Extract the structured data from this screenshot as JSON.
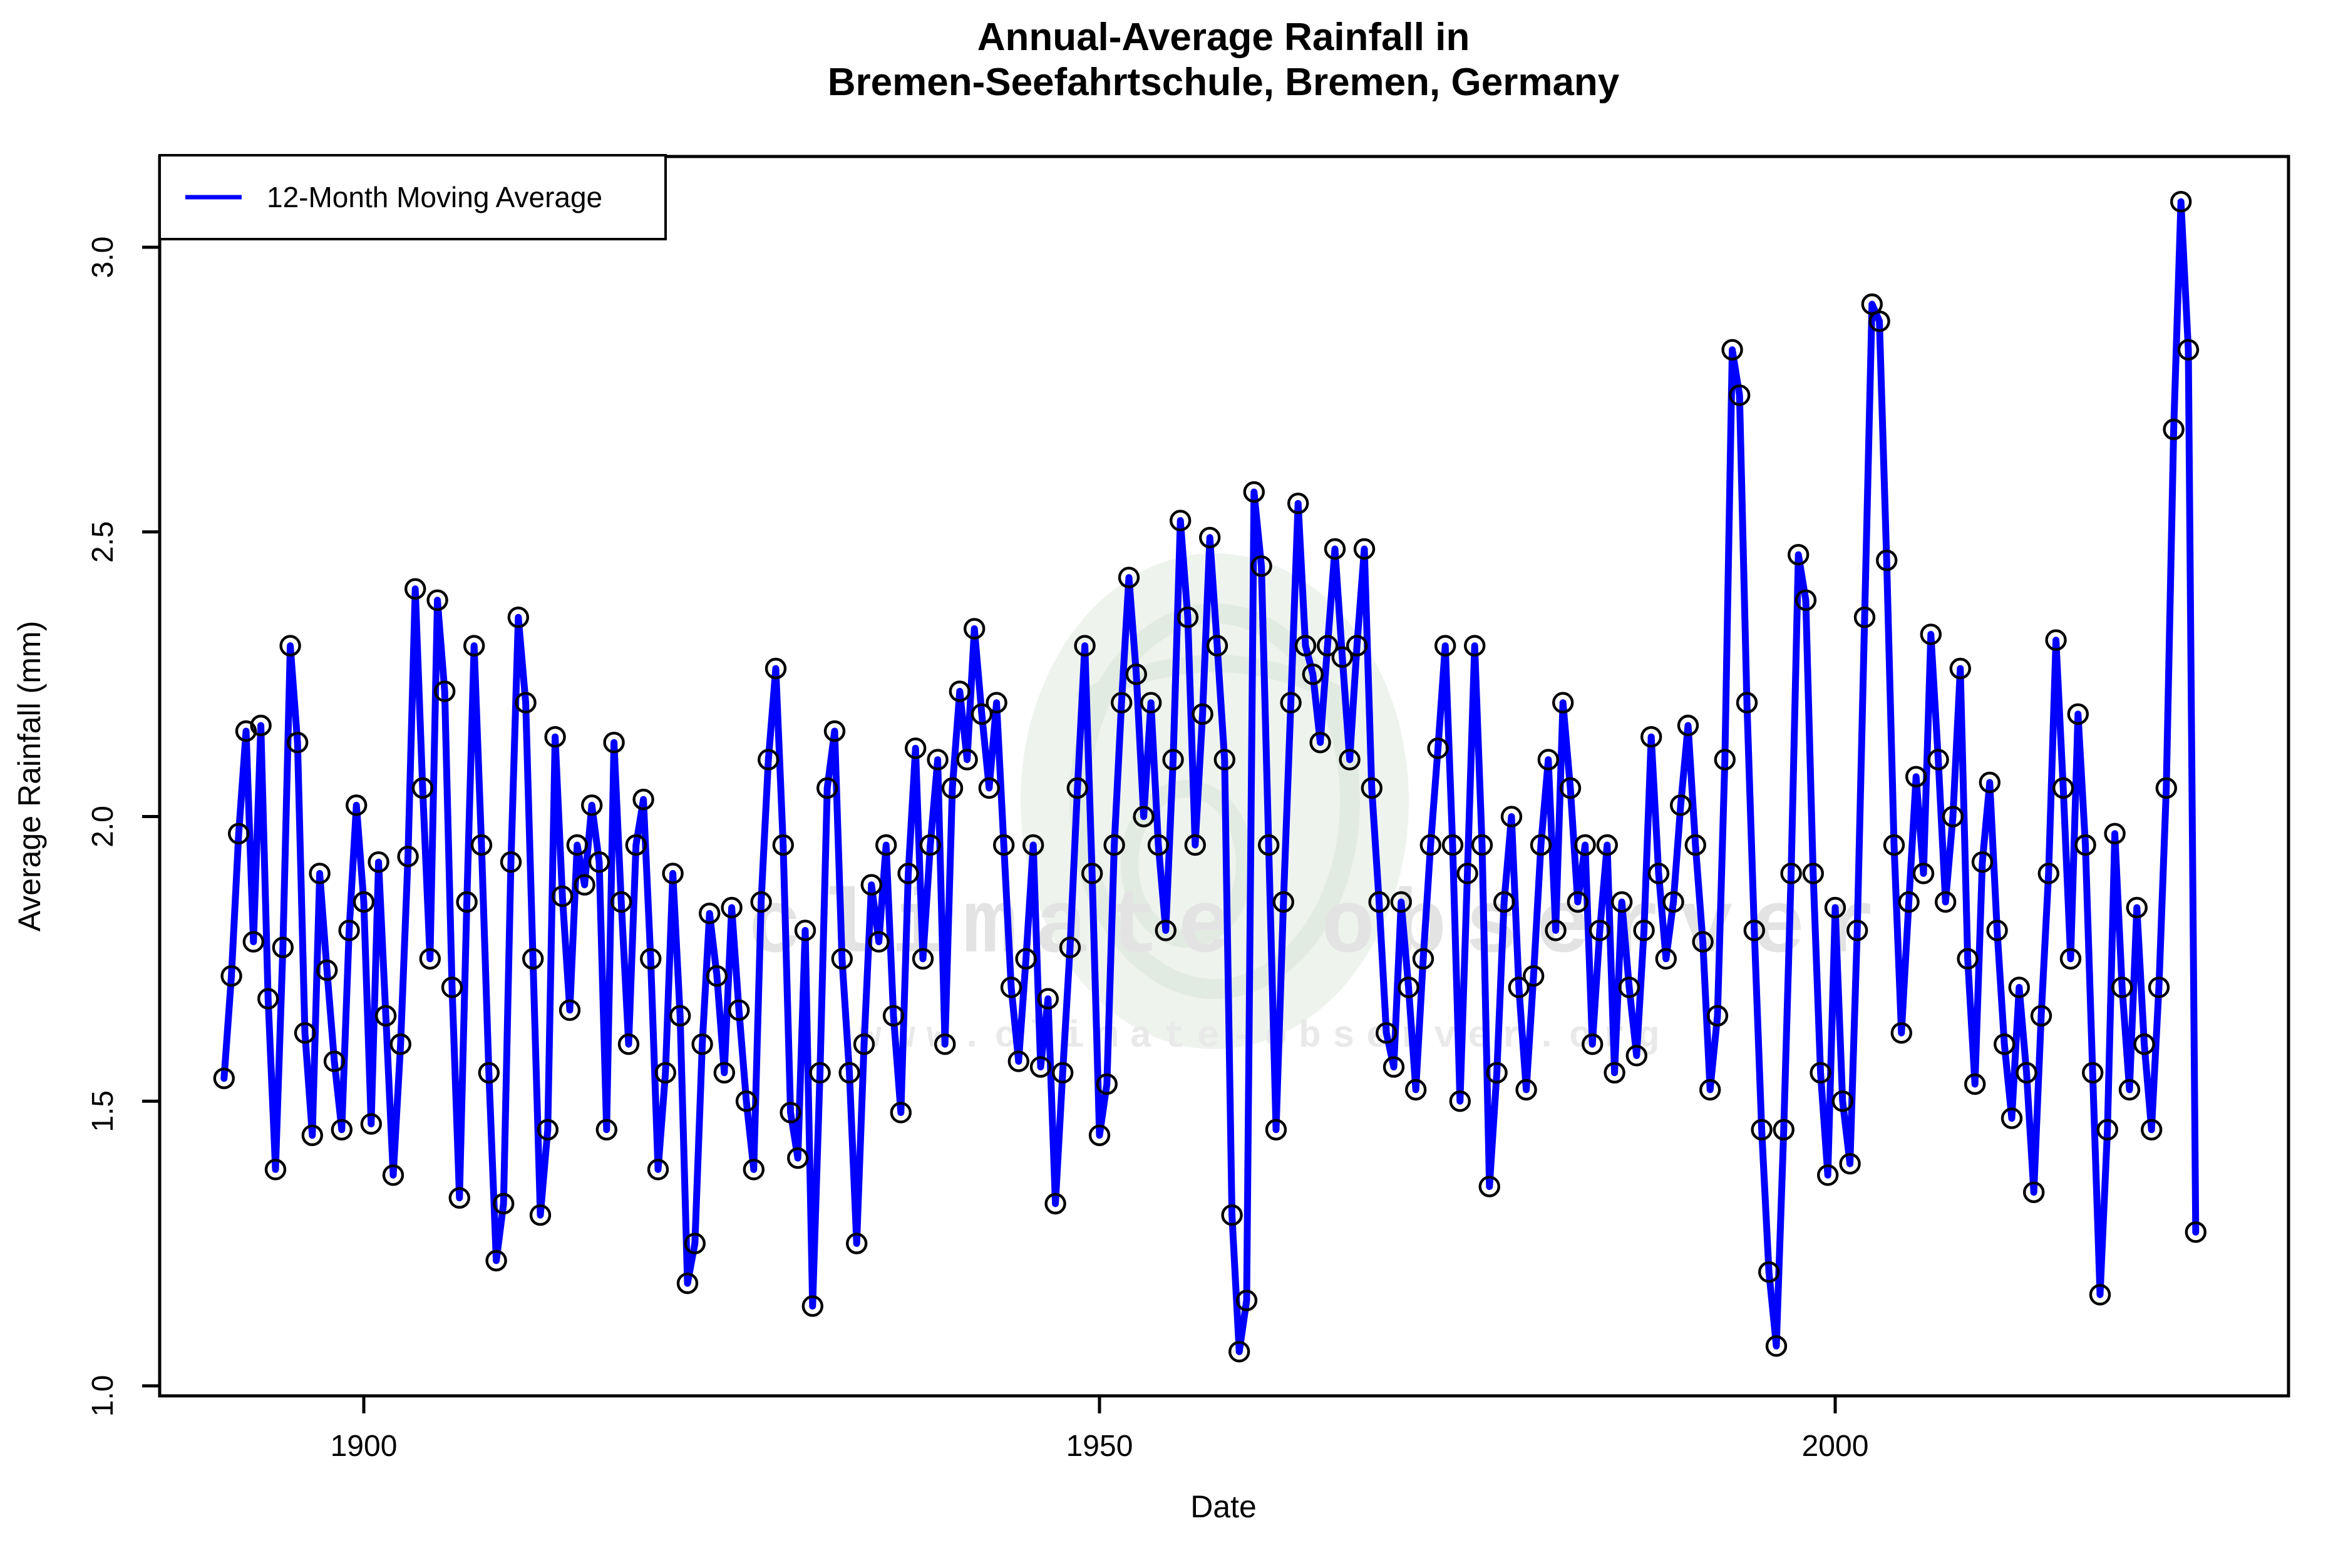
{
  "title": {
    "line1": "Annual-Average Rainfall in",
    "line2": "Bremen-Seefahrtschule, Bremen, Germany"
  },
  "legend": {
    "label": "12-Month Moving Average"
  },
  "axes": {
    "x_label": "Date",
    "y_label": "Average Rainfall (mm)",
    "x_ticks": [
      1900,
      1950,
      2000
    ],
    "y_ticks": [
      1.0,
      1.5,
      2.0,
      2.5,
      3.0
    ]
  },
  "watermark": {
    "big": "climate observer",
    "small": "www.climate-observer.org"
  },
  "colors": {
    "line": "#0000ff",
    "marker": "#000000",
    "axis": "#000000",
    "watermark_circle": "#eef3ee",
    "watermark_ring": "#e2ebe2",
    "watermark_text_big": "#e3e3e3",
    "watermark_text_small": "#e9e9e9"
  },
  "chart_data": {
    "type": "line",
    "title": "Annual-Average Rainfall in Bremen-Seefahrtschule, Bremen, Germany",
    "xlabel": "Date",
    "ylabel": "Average Rainfall (mm)",
    "xlim": [
      1886.2,
      2031.5
    ],
    "ylim": [
      0.98,
      3.16
    ],
    "grid": false,
    "legend_position": "top-left",
    "marker": "open-circle",
    "series": [
      {
        "name": "12-Month Moving Average",
        "x_start": 1890.5,
        "x_step": 0.5,
        "values": [
          1.54,
          1.72,
          1.97,
          2.15,
          1.78,
          2.16,
          1.68,
          1.38,
          1.77,
          2.3,
          2.13,
          1.62,
          1.44,
          1.9,
          1.73,
          1.57,
          1.45,
          1.8,
          2.02,
          1.85,
          1.46,
          1.92,
          1.65,
          1.37,
          1.6,
          1.93,
          2.4,
          2.05,
          1.75,
          2.38,
          2.22,
          1.7,
          1.33,
          1.85,
          2.3,
          1.95,
          1.55,
          1.22,
          1.32,
          1.92,
          2.35,
          2.2,
          1.75,
          1.3,
          1.45,
          2.14,
          1.86,
          1.66,
          1.95,
          1.88,
          2.02,
          1.92,
          1.45,
          2.13,
          1.85,
          1.6,
          1.95,
          2.03,
          1.75,
          1.38,
          1.55,
          1.9,
          1.65,
          1.18,
          1.25,
          1.6,
          1.83,
          1.72,
          1.55,
          1.84,
          1.66,
          1.5,
          1.38,
          1.85,
          2.1,
          2.26,
          1.95,
          1.48,
          1.4,
          1.8,
          1.14,
          1.55,
          2.05,
          2.15,
          1.75,
          1.55,
          1.25,
          1.6,
          1.88,
          1.78,
          1.95,
          1.65,
          1.48,
          1.9,
          2.12,
          1.75,
          1.95,
          2.1,
          1.6,
          2.05,
          2.22,
          2.1,
          2.33,
          2.18,
          2.05,
          2.2,
          1.95,
          1.7,
          1.57,
          1.75,
          1.95,
          1.56,
          1.68,
          1.32,
          1.55,
          1.77,
          2.05,
          2.3,
          1.9,
          1.44,
          1.53,
          1.95,
          2.2,
          2.42,
          2.25,
          2.0,
          2.2,
          1.95,
          1.8,
          2.1,
          2.52,
          2.35,
          1.95,
          2.18,
          2.49,
          2.3,
          2.1,
          1.3,
          1.06,
          1.15,
          2.57,
          2.44,
          1.95,
          1.45,
          1.85,
          2.2,
          2.55,
          2.3,
          2.25,
          2.13,
          2.3,
          2.47,
          2.28,
          2.1,
          2.3,
          2.47,
          2.05,
          1.85,
          1.62,
          1.56,
          1.85,
          1.7,
          1.52,
          1.75,
          1.95,
          2.12,
          2.3,
          1.95,
          1.5,
          1.9,
          2.3,
          1.95,
          1.35,
          1.55,
          1.85,
          2.0,
          1.7,
          1.52,
          1.72,
          1.95,
          2.1,
          1.8,
          2.2,
          2.05,
          1.85,
          1.95,
          1.6,
          1.8,
          1.95,
          1.55,
          1.85,
          1.7,
          1.58,
          1.8,
          2.14,
          1.9,
          1.75,
          1.85,
          2.02,
          2.16,
          1.95,
          1.78,
          1.52,
          1.65,
          2.1,
          2.82,
          2.74,
          2.2,
          1.8,
          1.45,
          1.2,
          1.07,
          1.45,
          1.9,
          2.46,
          2.38,
          1.9,
          1.55,
          1.37,
          1.84,
          1.5,
          1.39,
          1.8,
          2.35,
          2.9,
          2.87,
          2.45,
          1.95,
          1.62,
          1.85,
          2.07,
          1.9,
          2.32,
          2.1,
          1.85,
          2.0,
          2.26,
          1.75,
          1.53,
          1.92,
          2.06,
          1.8,
          1.6,
          1.47,
          1.7,
          1.55,
          1.34,
          1.65,
          1.9,
          2.31,
          2.05,
          1.75,
          2.18,
          1.95,
          1.55,
          1.16,
          1.45,
          1.97,
          1.7,
          1.52,
          1.84,
          1.6,
          1.45,
          1.7,
          2.05,
          2.68,
          3.08,
          2.82,
          1.27
        ]
      }
    ]
  }
}
